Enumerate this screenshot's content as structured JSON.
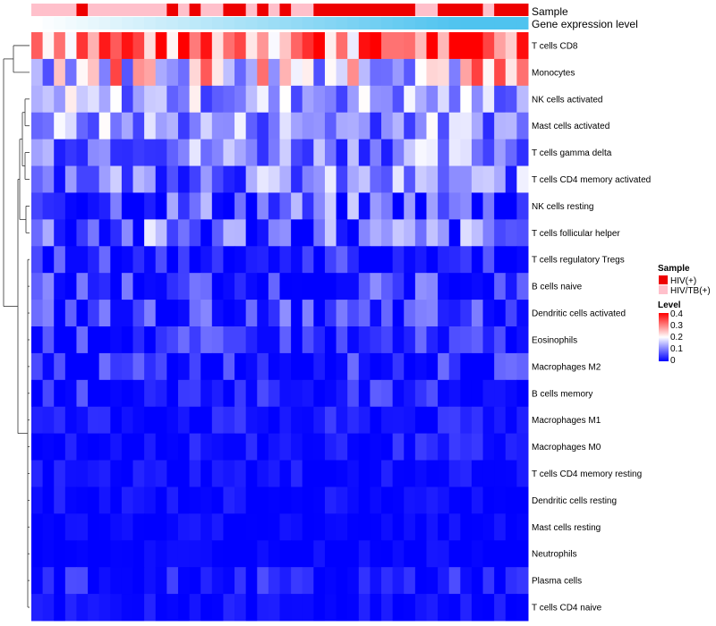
{
  "chart_data": {
    "type": "heatmap",
    "title": "",
    "annotation_labels": [
      "Sample",
      "Gene expression level"
    ],
    "rows": [
      "T cells CD8",
      "Monocytes",
      "NK cells activated",
      "Mast cells activated",
      "T cells gamma delta",
      "T cells CD4 memory activated",
      "NK cells resting",
      "T cells follicular helper",
      "T cells regulatory  Tregs",
      "B cells naive",
      "Dendritic cells activated",
      "Eosinophils",
      "Macrophages M2",
      "B cells memory",
      "Macrophages M1",
      "Macrophages M0",
      "T cells CD4 memory resting",
      "Dendritic cells resting",
      "Mast cells resting",
      "Neutrophils",
      "Plasma cells",
      "T cells CD4 naive"
    ],
    "n_columns": 44,
    "sample_groups": [
      "HIV/TB(+)",
      "HIV/TB(+)",
      "HIV/TB(+)",
      "HIV/TB(+)",
      "HIV(+)",
      "HIV/TB(+)",
      "HIV/TB(+)",
      "HIV/TB(+)",
      "HIV/TB(+)",
      "HIV/TB(+)",
      "HIV/TB(+)",
      "HIV/TB(+)",
      "HIV(+)",
      "HIV/TB(+)",
      "HIV(+)",
      "HIV/TB(+)",
      "HIV/TB(+)",
      "HIV(+)",
      "HIV(+)",
      "HIV/TB(+)",
      "HIV(+)",
      "HIV/TB(+)",
      "HIV(+)",
      "HIV/TB(+)",
      "HIV/TB(+)",
      "HIV(+)",
      "HIV(+)",
      "HIV(+)",
      "HIV(+)",
      "HIV(+)",
      "HIV(+)",
      "HIV(+)",
      "HIV(+)",
      "HIV(+)",
      "HIV/TB(+)",
      "HIV/TB(+)",
      "HIV(+)",
      "HIV(+)",
      "HIV(+)",
      "HIV(+)",
      "HIV/TB(+)",
      "HIV(+)",
      "HIV(+)",
      "HIV(+)"
    ],
    "row_base_levels": [
      0.33,
      0.22,
      0.13,
      0.12,
      0.11,
      0.1,
      0.06,
      0.07,
      0.03,
      0.04,
      0.04,
      0.03,
      0.03,
      0.025,
      0.015,
      0.015,
      0.01,
      0.008,
      0.005,
      0.003,
      0.02,
      0.008
    ],
    "legend": {
      "sample_title": "Sample",
      "sample_entries": [
        {
          "label": "HIV(+)",
          "color": "#ee0000"
        },
        {
          "label": "HIV/TB(+)",
          "color": "#ffc0cb"
        }
      ],
      "level_title": "Level",
      "level_ticks": [
        "0.4",
        "0.3",
        "0.2",
        "0.1",
        "0"
      ],
      "range": [
        0,
        0.4
      ]
    },
    "colors": {
      "low": "#0000ff",
      "mid": "#ffffff",
      "high": "#ff0000",
      "expr_low": "#ffffff",
      "expr_high": "#4fc3ef"
    }
  }
}
